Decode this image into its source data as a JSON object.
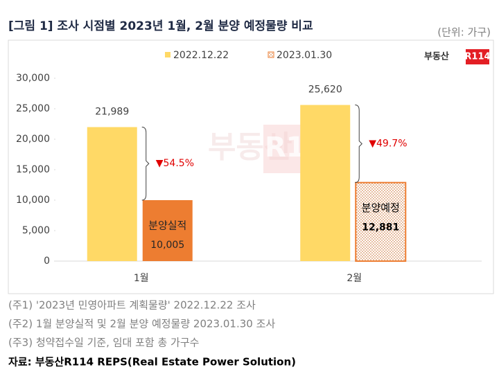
{
  "chart_data": {
    "type": "bar",
    "title": "[그림 1] 조사 시점별 2023년 1월, 2월 분양 예정물량 비교",
    "unit": "(단위: 가구)",
    "logo": [
      "부동산",
      "R114"
    ],
    "categories": [
      "1월",
      "2월"
    ],
    "series": [
      {
        "name": "2022.12.22",
        "color": "#ffd966",
        "fill_styles": [
          "solid",
          "solid"
        ],
        "values": [
          21989,
          25620
        ],
        "value_labels": [
          "21,989",
          "25,620"
        ]
      },
      {
        "name": "2023.01.30",
        "color": "#ed7d31",
        "fill_styles": [
          "solid",
          "dotted"
        ],
        "values": [
          10005,
          12881
        ],
        "value_labels": [
          "10,005",
          "12,881"
        ],
        "inside_labels": [
          "분양실적",
          "분양예정"
        ]
      }
    ],
    "change_labels": [
      "▼54.5%",
      "▼49.7%"
    ],
    "ylim": [
      0,
      30000
    ],
    "yticks": [
      0,
      {
        "value": 5000,
        "label": "5,000"
      },
      {
        "value": 10000,
        "label": "10,000"
      },
      {
        "value": 15000,
        "label": "15,000"
      },
      {
        "value": 20000,
        "label": "20,000"
      },
      {
        "value": 25000,
        "label": "25,000"
      },
      {
        "value": 30000,
        "label": "30,000"
      }
    ],
    "grid": false,
    "notes": [
      "(주1) '2023년 민영아파트 계획물량' 2022.12.22 조사",
      "(주2) 1월 분양실적 및 2월 분양 예정물량 2023.01.30 조사",
      "(주3) 청약접수일 기준, 임대 포함 총 가구수"
    ],
    "source": "자료: 부동산R114 REPS(Real Estate Power Solution)"
  }
}
